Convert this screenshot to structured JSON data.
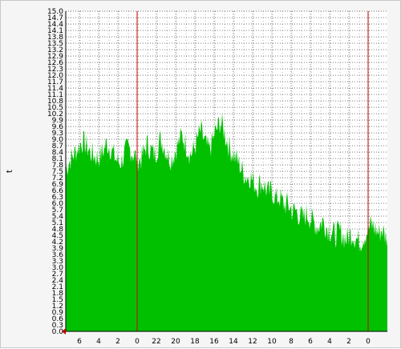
{
  "chart_data": {
    "type": "area",
    "title": "",
    "xlabel": "",
    "ylabel": "t",
    "ylim": [
      0,
      15.0
    ],
    "y_tick_labels": [
      "0.0",
      "0.3",
      "0.6",
      "0.9",
      "1.2",
      "1.5",
      "1.8",
      "2.1",
      "2.4",
      "2.7",
      "3.0",
      "3.3",
      "3.6",
      "3.9",
      "4.2",
      "4.5",
      "4.8",
      "5.1",
      "5.4",
      "5.7",
      "6.0",
      "6.3",
      "6.6",
      "6.9",
      "7.2",
      "7.5",
      "7.8",
      "8.1",
      "8.4",
      "8.7",
      "9.0",
      "9.3",
      "9.6",
      "9.9",
      "10.2",
      "10.5",
      "10.8",
      "11.1",
      "11.4",
      "11.7",
      "12.0",
      "12.3",
      "12.6",
      "12.9",
      "13.2",
      "13.5",
      "13.8",
      "14.1",
      "14.4",
      "14.7",
      "15.0"
    ],
    "x_tick_labels": [
      "6",
      "4",
      "2",
      "0",
      "22",
      "20",
      "18",
      "16",
      "14",
      "12",
      "10",
      "8",
      "6",
      "4",
      "2",
      "0"
    ],
    "day_boundaries_at_tick": [
      3,
      15
    ],
    "grid": true,
    "colors": {
      "fill": "#00c000",
      "marker": "#cc0000",
      "plot_bg": "#ffffff",
      "grid": "#000000"
    },
    "series": [
      {
        "values": [
          7.6,
          7.9,
          8.1,
          8.3,
          8.5,
          8.7,
          8.9,
          8.8,
          8.6,
          8.4,
          8.3,
          8.2,
          8.1,
          8.3,
          8.5,
          8.8,
          8.7,
          8.5,
          8.2,
          8.0,
          7.9,
          8.1,
          8.4,
          8.6,
          8.5,
          8.3,
          8.2,
          8.0,
          8.1,
          8.4,
          8.8,
          8.6,
          8.4,
          8.3,
          8.6,
          9.0,
          8.8,
          8.5,
          8.2,
          8.1,
          8.3,
          8.6,
          8.9,
          9.2,
          8.9,
          8.6,
          8.3,
          8.4,
          8.7,
          9.1,
          9.4,
          9.0,
          8.7,
          8.5,
          8.8,
          9.2,
          9.5,
          9.8,
          9.6,
          9.2,
          8.8,
          8.5,
          8.3,
          8.1,
          7.9,
          7.6,
          7.4,
          7.2,
          7.3,
          7.1,
          6.9,
          6.8,
          7.0,
          6.9,
          6.7,
          6.5,
          6.6,
          6.4,
          6.2,
          6.3,
          6.1,
          5.9,
          6.0,
          5.8,
          5.6,
          5.7,
          5.5,
          5.4,
          5.3,
          5.5,
          5.4,
          5.2,
          5.1,
          4.9,
          5.0,
          5.2,
          5.0,
          4.8,
          4.7,
          4.6,
          4.5,
          4.7,
          4.6,
          4.4,
          4.3,
          4.5,
          4.6,
          4.4,
          4.3,
          4.2,
          4.4,
          4.6,
          4.8,
          5.0,
          4.9,
          4.7,
          4.6,
          4.8,
          4.5,
          4.4
        ]
      }
    ]
  }
}
